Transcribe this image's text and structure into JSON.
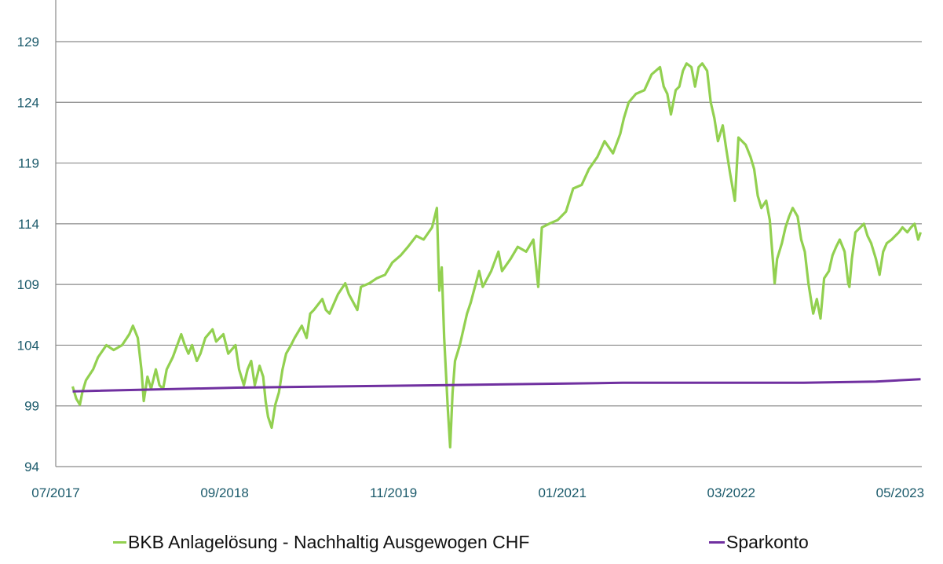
{
  "chart_data": {
    "type": "line",
    "title": "",
    "xlabel": "",
    "ylabel": "",
    "x_unit": "months since 07/2017",
    "xlim": [
      0,
      71.8
    ],
    "ylim": [
      94,
      129
    ],
    "grid": true,
    "legend_placement": "bottom",
    "yticks": [
      94,
      99,
      104,
      109,
      114,
      119,
      124,
      129
    ],
    "xticks": [
      {
        "value": 0,
        "label": "07/2017"
      },
      {
        "value": 14,
        "label": "09/2018"
      },
      {
        "value": 28,
        "label": "11/2019"
      },
      {
        "value": 42,
        "label": "01/2021"
      },
      {
        "value": 56,
        "label": "03/2022"
      },
      {
        "value": 70,
        "label": "05/2023"
      }
    ],
    "series": [
      {
        "name": "BKB Anlagelösung - Nachhaltig Ausgewogen CHF",
        "color": "#92d050",
        "x": [
          1.4,
          1.7,
          2.0,
          2.2,
          2.5,
          3.1,
          3.5,
          4.2,
          4.8,
          5.5,
          6.1,
          6.4,
          6.8,
          7.1,
          7.3,
          7.6,
          7.9,
          8.3,
          8.6,
          8.9,
          9.2,
          9.7,
          10.4,
          10.7,
          11.0,
          11.3,
          11.7,
          12.0,
          12.4,
          13.0,
          13.3,
          13.9,
          14.3,
          14.9,
          15.2,
          15.6,
          15.9,
          16.2,
          16.5,
          16.9,
          17.2,
          17.4,
          17.6,
          17.9,
          18.2,
          18.5,
          18.8,
          19.1,
          19.5,
          19.8,
          20.4,
          20.8,
          21.1,
          21.4,
          22.1,
          22.4,
          22.7,
          23.4,
          24.0,
          24.3,
          25.0,
          25.3,
          26.0,
          26.6,
          27.3,
          27.9,
          28.6,
          29.2,
          29.9,
          30.5,
          31.2,
          31.6,
          31.8,
          32.0,
          32.2,
          32.5,
          32.7,
          32.9,
          33.1,
          33.5,
          33.8,
          34.1,
          34.4,
          35.1,
          35.4,
          36.1,
          36.7,
          37.0,
          37.7,
          38.3,
          39.0,
          39.6,
          40.0,
          40.3,
          40.9,
          41.6,
          42.3,
          42.9,
          43.6,
          44.2,
          44.9,
          45.5,
          46.2,
          46.8,
          47.1,
          47.5,
          48.1,
          48.8,
          49.4,
          50.1,
          50.4,
          50.7,
          51.0,
          51.4,
          51.7,
          52.0,
          52.3,
          52.7,
          53.0,
          53.3,
          53.6,
          54.0,
          54.3,
          54.6,
          54.9,
          55.3,
          55.6,
          55.9,
          56.3,
          56.6,
          56.9,
          57.2,
          57.6,
          57.9,
          58.2,
          58.5,
          58.9,
          59.2,
          59.4,
          59.6,
          59.8,
          60.2,
          60.5,
          60.8,
          61.1,
          61.5,
          61.8,
          62.1,
          62.4,
          62.8,
          63.1,
          63.4,
          63.7,
          64.1,
          64.4,
          64.7,
          65.0,
          65.4,
          65.7,
          65.8,
          66.0,
          66.3,
          66.7,
          67.0,
          67.3,
          67.6,
          68.0,
          68.3,
          68.6,
          68.9,
          69.3,
          69.6,
          69.9,
          70.2,
          70.6,
          70.9,
          71.2,
          71.5,
          71.7
        ],
        "y": [
          100.6,
          99.6,
          99.1,
          100.1,
          101.1,
          102.0,
          103.0,
          104.0,
          103.6,
          104.0,
          104.9,
          105.6,
          104.6,
          102.0,
          99.4,
          101.4,
          100.4,
          102.0,
          100.7,
          100.4,
          102.0,
          103.0,
          104.9,
          104.0,
          103.3,
          104.0,
          102.7,
          103.3,
          104.6,
          105.3,
          104.3,
          104.9,
          103.3,
          104.0,
          102.0,
          100.7,
          102.0,
          102.7,
          100.7,
          102.3,
          101.4,
          99.4,
          98.1,
          97.2,
          99.1,
          100.1,
          102.0,
          103.3,
          104.0,
          104.6,
          105.6,
          104.6,
          106.6,
          106.9,
          107.8,
          106.9,
          106.6,
          108.2,
          109.1,
          108.2,
          106.9,
          108.8,
          109.1,
          109.5,
          109.8,
          110.8,
          111.4,
          112.1,
          113.0,
          112.7,
          113.7,
          115.3,
          108.5,
          110.4,
          104.6,
          98.8,
          95.6,
          100.1,
          102.7,
          104.0,
          105.3,
          106.6,
          107.5,
          110.1,
          108.8,
          110.1,
          111.7,
          110.1,
          111.1,
          112.1,
          111.7,
          112.7,
          108.8,
          113.7,
          114.0,
          114.3,
          115.0,
          116.9,
          117.2,
          118.5,
          119.5,
          120.8,
          119.8,
          121.4,
          122.7,
          124.0,
          124.7,
          125.0,
          126.3,
          126.9,
          125.3,
          124.7,
          123.0,
          125.0,
          125.3,
          126.6,
          127.2,
          126.9,
          125.3,
          126.9,
          127.2,
          126.6,
          124.0,
          122.7,
          120.8,
          122.1,
          120.1,
          118.2,
          115.9,
          121.1,
          120.8,
          120.5,
          119.5,
          118.5,
          116.3,
          115.3,
          115.9,
          114.3,
          111.7,
          109.1,
          111.1,
          112.4,
          113.7,
          114.6,
          115.3,
          114.6,
          112.7,
          111.7,
          109.1,
          106.6,
          107.8,
          106.2,
          109.5,
          110.1,
          111.4,
          112.1,
          112.7,
          111.7,
          109.1,
          108.8,
          111.1,
          113.3,
          113.7,
          114.0,
          113.0,
          112.4,
          111.1,
          109.8,
          111.7,
          112.4,
          112.7,
          113.0,
          113.3,
          113.7,
          113.3,
          113.7,
          114.0,
          112.7,
          113.3
        ]
      },
      {
        "name": "Sparkonto",
        "color": "#7030a0",
        "x": [
          1.4,
          15,
          32,
          47,
          62,
          68,
          71.7
        ],
        "y": [
          100.2,
          100.5,
          100.7,
          100.9,
          100.9,
          101.0,
          101.2
        ]
      }
    ]
  }
}
